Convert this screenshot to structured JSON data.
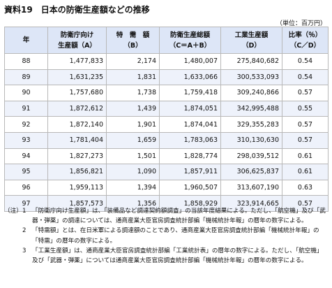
{
  "title": "資料19　日本の防衛生産額などの推移",
  "unit": "（単位：百万円）",
  "headers": [
    {
      "line1": "年",
      "line2": ""
    },
    {
      "line1": "防衛庁向け",
      "line2": "生産額（A）"
    },
    {
      "line1": "特　需　額",
      "line2": "（B）"
    },
    {
      "line1": "防衛生産総額",
      "line2": "（C＝A＋B）"
    },
    {
      "line1": "工業生産額",
      "line2": "（D）"
    },
    {
      "line1": "比率（％）",
      "line2": "（C／D）"
    }
  ],
  "rows": [
    {
      "year": "88",
      "a": "1,477,833",
      "b": "2,174",
      "c": "1,480,007",
      "d": "275,840,682",
      "ratio": "0.54"
    },
    {
      "year": "89",
      "a": "1,631,235",
      "b": "1,831",
      "c": "1,633,066",
      "d": "300,533,093",
      "ratio": "0.54"
    },
    {
      "year": "90",
      "a": "1,757,680",
      "b": "1,738",
      "c": "1,759,418",
      "d": "309,240,866",
      "ratio": "0.57"
    },
    {
      "year": "91",
      "a": "1,872,612",
      "b": "1,439",
      "c": "1,874,051",
      "d": "342,995,488",
      "ratio": "0.55"
    },
    {
      "year": "92",
      "a": "1,872,140",
      "b": "1,901",
      "c": "1,874,041",
      "d": "329,355,283",
      "ratio": "0.57"
    },
    {
      "year": "93",
      "a": "1,781,404",
      "b": "1,659",
      "c": "1,783,063",
      "d": "310,130,630",
      "ratio": "0.57"
    },
    {
      "year": "94",
      "a": "1,827,273",
      "b": "1,501",
      "c": "1,828,774",
      "d": "298,039,512",
      "ratio": "0.61"
    },
    {
      "year": "95",
      "a": "1,856,821",
      "b": "1,090",
      "c": "1,857,911",
      "d": "306,625,837",
      "ratio": "0.61"
    },
    {
      "year": "96",
      "a": "1,959,113",
      "b": "1,394",
      "c": "1,960,507",
      "d": "313,607,190",
      "ratio": "0.63"
    },
    {
      "year": "97",
      "a": "1,857,573",
      "b": "1,356",
      "c": "1,858,929",
      "d": "323,914,665",
      "ratio": "0.57"
    }
  ],
  "notes_label": "（注）",
  "notes": [
    {
      "num": "1",
      "text": "「防衛庁向け生産額」は、「装備品など調達契約額調査」の当該年度結果による。ただし、「航空機」及び「武器・弾薬」の調達については、通商産業大臣官房調査統計部編「機械統計年報」の暦年の数字による。"
    },
    {
      "num": "2",
      "text": "「特需額」とは、在日米軍による調達額のことであり、通商産業大臣官房調査統計部編「機械統計年報」の「特需」の暦年の数字による。"
    },
    {
      "num": "3",
      "text": "「工業生産額」は、通商産業大臣官房調査統計部編「工業統計表」の暦年の数字による。ただし、「航空機」及び「武器・弾薬」については通商産業大臣官房調査統計部編「機械統計年報」の暦年の数字による。"
    }
  ]
}
